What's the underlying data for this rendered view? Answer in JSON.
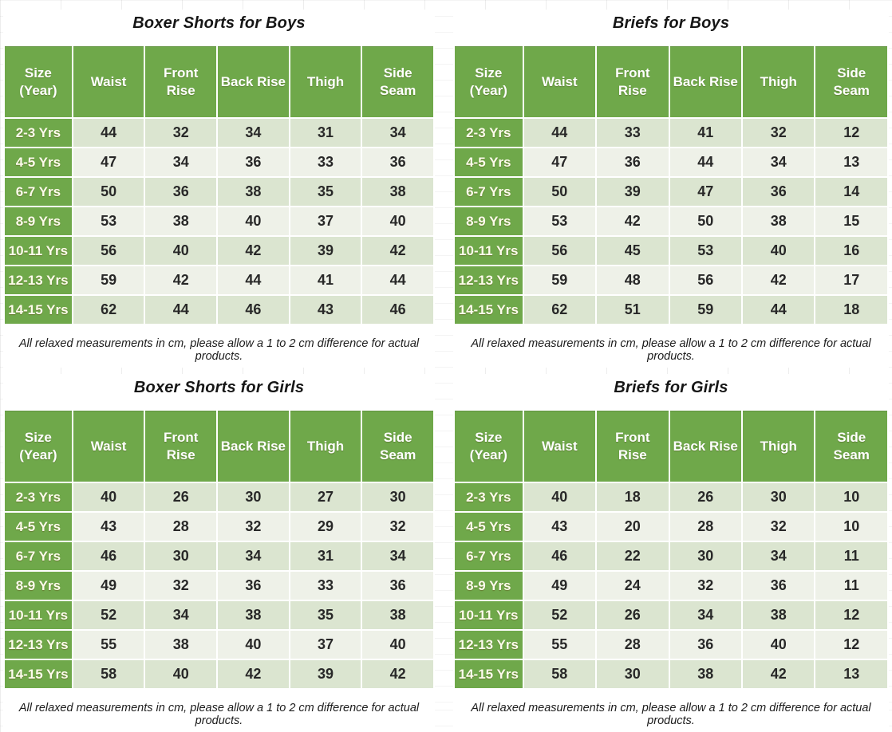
{
  "footnote": "All relaxed measurements in cm, please allow a 1 to 2 cm difference for actual products.",
  "columns": [
    {
      "label": "Size (Year)",
      "lines": [
        "Size",
        "(Year)"
      ]
    },
    {
      "label": "Waist",
      "lines": [
        "Waist"
      ]
    },
    {
      "label": "Front Rise",
      "lines": [
        "Front",
        "Rise"
      ]
    },
    {
      "label": "Back Rise",
      "lines": [
        "Back Rise"
      ]
    },
    {
      "label": "Thigh",
      "lines": [
        "Thigh"
      ]
    },
    {
      "label": "Side Seam",
      "lines": [
        "Side",
        "Seam"
      ]
    }
  ],
  "colors": {
    "header_green": "#6fa84a",
    "band_sage": "#dbe5d0",
    "band_light": "#eef1e8",
    "header_text": "#ffffff",
    "body_text": "#282828"
  },
  "chart_data": [
    {
      "type": "table",
      "title": "Boxer Shorts for Boys",
      "columns": [
        "Size (Year)",
        "Waist",
        "Front Rise",
        "Back Rise",
        "Thigh",
        "Side Seam"
      ],
      "rows": [
        [
          "2-3 Yrs",
          44,
          32,
          34,
          31,
          34
        ],
        [
          "4-5 Yrs",
          47,
          34,
          36,
          33,
          36
        ],
        [
          "6-7 Yrs",
          50,
          36,
          38,
          35,
          38
        ],
        [
          "8-9 Yrs",
          53,
          38,
          40,
          37,
          40
        ],
        [
          "10-11 Yrs",
          56,
          40,
          42,
          39,
          42
        ],
        [
          "12-13 Yrs",
          59,
          42,
          44,
          41,
          44
        ],
        [
          "14-15 Yrs",
          62,
          44,
          46,
          43,
          46
        ]
      ]
    },
    {
      "type": "table",
      "title": "Briefs for Boys",
      "columns": [
        "Size (Year)",
        "Waist",
        "Front Rise",
        "Back Rise",
        "Thigh",
        "Side Seam"
      ],
      "rows": [
        [
          "2-3 Yrs",
          44,
          33,
          41,
          32,
          12
        ],
        [
          "4-5 Yrs",
          47,
          36,
          44,
          34,
          13
        ],
        [
          "6-7 Yrs",
          50,
          39,
          47,
          36,
          14
        ],
        [
          "8-9 Yrs",
          53,
          42,
          50,
          38,
          15
        ],
        [
          "10-11 Yrs",
          56,
          45,
          53,
          40,
          16
        ],
        [
          "12-13 Yrs",
          59,
          48,
          56,
          42,
          17
        ],
        [
          "14-15 Yrs",
          62,
          51,
          59,
          44,
          18
        ]
      ]
    },
    {
      "type": "table",
      "title": "Boxer Shorts for Girls",
      "columns": [
        "Size (Year)",
        "Waist",
        "Front Rise",
        "Back Rise",
        "Thigh",
        "Side Seam"
      ],
      "rows": [
        [
          "2-3 Yrs",
          40,
          26,
          30,
          27,
          30
        ],
        [
          "4-5 Yrs",
          43,
          28,
          32,
          29,
          32
        ],
        [
          "6-7 Yrs",
          46,
          30,
          34,
          31,
          34
        ],
        [
          "8-9 Yrs",
          49,
          32,
          36,
          33,
          36
        ],
        [
          "10-11 Yrs",
          52,
          34,
          38,
          35,
          38
        ],
        [
          "12-13 Yrs",
          55,
          38,
          40,
          37,
          40
        ],
        [
          "14-15 Yrs",
          58,
          40,
          42,
          39,
          42
        ]
      ]
    },
    {
      "type": "table",
      "title": "Briefs for Girls",
      "columns": [
        "Size (Year)",
        "Waist",
        "Front Rise",
        "Back Rise",
        "Thigh",
        "Side Seam"
      ],
      "rows": [
        [
          "2-3 Yrs",
          40,
          18,
          26,
          30,
          10
        ],
        [
          "4-5 Yrs",
          43,
          20,
          28,
          32,
          10
        ],
        [
          "6-7 Yrs",
          46,
          22,
          30,
          34,
          11
        ],
        [
          "8-9 Yrs",
          49,
          24,
          32,
          36,
          11
        ],
        [
          "10-11 Yrs",
          52,
          26,
          34,
          38,
          12
        ],
        [
          "12-13 Yrs",
          55,
          28,
          36,
          40,
          12
        ],
        [
          "14-15 Yrs",
          58,
          30,
          38,
          42,
          13
        ]
      ]
    }
  ]
}
